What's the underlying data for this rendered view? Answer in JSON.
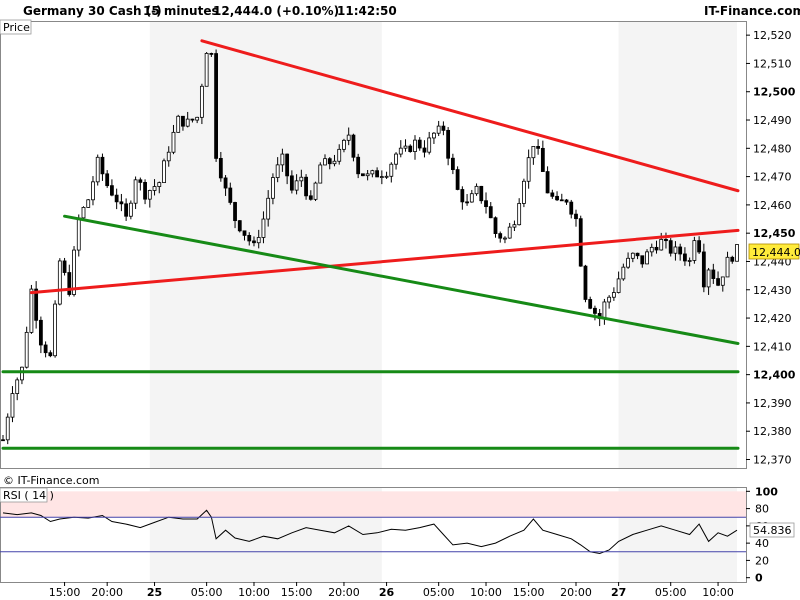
{
  "header": {
    "instrument": "Germany 30 Cash (-)",
    "timeframe": "15 minutes",
    "quote": "12,444.0 (+0.10%)",
    "time": "11:42:50",
    "brand": "IT-Finance.com"
  },
  "colors": {
    "candle": "#000000",
    "resistance": "#ee1c1c",
    "support": "#168a16",
    "rsi_line": "#000000",
    "rsi_band": "#ffe5e5",
    "rsi_level": "#4444aa",
    "session_shade": "#f4f4f4"
  },
  "chart_data": [
    {
      "type": "line",
      "panel": "price",
      "title": "Price",
      "watermark": "© IT-Finance.com",
      "current_price_label": "12,444.0",
      "current_price": 12444,
      "ylim": [
        12367,
        12525
      ],
      "y_ticks": [
        "12,520",
        "12,510",
        "12,500",
        "12,490",
        "12,480",
        "12,470",
        "12,460",
        "12,450",
        "12,440",
        "12,430",
        "12,420",
        "12,410",
        "12,400",
        "12,390",
        "12,380",
        "12,370"
      ],
      "y_tick_values": [
        12520,
        12510,
        12500,
        12490,
        12480,
        12470,
        12460,
        12450,
        12440,
        12430,
        12420,
        12410,
        12400,
        12390,
        12380,
        12370
      ],
      "bold_ticks": [
        "12,500",
        "12,450",
        "12,400"
      ],
      "x_ticks": [
        "15:00",
        "20:00",
        "25",
        "05:00",
        "10:00",
        "15:00",
        "20:00",
        "26",
        "05:00",
        "10:00",
        "15:00",
        "20:00",
        "27",
        "05:00",
        "10:00"
      ],
      "bold_x_ticks": [
        "25",
        "26",
        "27"
      ],
      "x_tick_bars": [
        13,
        22,
        32,
        43,
        53,
        62,
        72,
        81,
        92,
        102,
        111,
        121,
        130,
        141,
        151
      ],
      "shaded_bar_ranges": [
        [
          31,
          80
        ],
        [
          130,
          155
        ]
      ],
      "bar_count": 156,
      "price_points": [
        {
          "bar": 0,
          "value": 12377
        },
        {
          "bar": 2,
          "value": 12395
        },
        {
          "bar": 4,
          "value": 12402
        },
        {
          "bar": 6,
          "value": 12430
        },
        {
          "bar": 8,
          "value": 12412
        },
        {
          "bar": 10,
          "value": 12406
        },
        {
          "bar": 12,
          "value": 12440
        },
        {
          "bar": 14,
          "value": 12430
        },
        {
          "bar": 16,
          "value": 12455
        },
        {
          "bar": 18,
          "value": 12462
        },
        {
          "bar": 20,
          "value": 12475
        },
        {
          "bar": 22,
          "value": 12467
        },
        {
          "bar": 24,
          "value": 12462
        },
        {
          "bar": 26,
          "value": 12455
        },
        {
          "bar": 28,
          "value": 12470
        },
        {
          "bar": 30,
          "value": 12464
        },
        {
          "bar": 33,
          "value": 12468
        },
        {
          "bar": 35,
          "value": 12480
        },
        {
          "bar": 37,
          "value": 12490
        },
        {
          "bar": 39,
          "value": 12489
        },
        {
          "bar": 41,
          "value": 12491
        },
        {
          "bar": 43,
          "value": 12515
        },
        {
          "bar": 44,
          "value": 12513
        },
        {
          "bar": 45,
          "value": 12478
        },
        {
          "bar": 47,
          "value": 12465
        },
        {
          "bar": 49,
          "value": 12455
        },
        {
          "bar": 51,
          "value": 12450
        },
        {
          "bar": 53,
          "value": 12445
        },
        {
          "bar": 55,
          "value": 12455
        },
        {
          "bar": 57,
          "value": 12470
        },
        {
          "bar": 59,
          "value": 12476
        },
        {
          "bar": 61,
          "value": 12465
        },
        {
          "bar": 63,
          "value": 12470
        },
        {
          "bar": 65,
          "value": 12460
        },
        {
          "bar": 67,
          "value": 12474
        },
        {
          "bar": 69,
          "value": 12475
        },
        {
          "bar": 71,
          "value": 12478
        },
        {
          "bar": 73,
          "value": 12485
        },
        {
          "bar": 75,
          "value": 12472
        },
        {
          "bar": 77,
          "value": 12470
        },
        {
          "bar": 79,
          "value": 12471
        },
        {
          "bar": 81,
          "value": 12472
        },
        {
          "bar": 83,
          "value": 12478
        },
        {
          "bar": 85,
          "value": 12479
        },
        {
          "bar": 87,
          "value": 12482
        },
        {
          "bar": 89,
          "value": 12480
        },
        {
          "bar": 91,
          "value": 12485
        },
        {
          "bar": 93,
          "value": 12487
        },
        {
          "bar": 94,
          "value": 12478
        },
        {
          "bar": 96,
          "value": 12465
        },
        {
          "bar": 98,
          "value": 12460
        },
        {
          "bar": 100,
          "value": 12465
        },
        {
          "bar": 102,
          "value": 12460
        },
        {
          "bar": 104,
          "value": 12450
        },
        {
          "bar": 106,
          "value": 12448
        },
        {
          "bar": 108,
          "value": 12455
        },
        {
          "bar": 110,
          "value": 12470
        },
        {
          "bar": 112,
          "value": 12482
        },
        {
          "bar": 113,
          "value": 12478
        },
        {
          "bar": 115,
          "value": 12465
        },
        {
          "bar": 117,
          "value": 12460
        },
        {
          "bar": 119,
          "value": 12462
        },
        {
          "bar": 121,
          "value": 12455
        },
        {
          "bar": 122,
          "value": 12440
        },
        {
          "bar": 123,
          "value": 12428
        },
        {
          "bar": 125,
          "value": 12422
        },
        {
          "bar": 126,
          "value": 12420
        },
        {
          "bar": 127,
          "value": 12425
        },
        {
          "bar": 129,
          "value": 12430
        },
        {
          "bar": 131,
          "value": 12438
        },
        {
          "bar": 133,
          "value": 12442
        },
        {
          "bar": 135,
          "value": 12440
        },
        {
          "bar": 137,
          "value": 12445
        },
        {
          "bar": 139,
          "value": 12447
        },
        {
          "bar": 141,
          "value": 12444
        },
        {
          "bar": 143,
          "value": 12443
        },
        {
          "bar": 145,
          "value": 12440
        },
        {
          "bar": 146,
          "value": 12449
        },
        {
          "bar": 147,
          "value": 12445
        },
        {
          "bar": 148,
          "value": 12433
        },
        {
          "bar": 149,
          "value": 12438
        },
        {
          "bar": 151,
          "value": 12432
        },
        {
          "bar": 153,
          "value": 12440
        },
        {
          "bar": 155,
          "value": 12444
        }
      ],
      "trendlines": [
        {
          "color": "resistance",
          "from": {
            "bar": 42,
            "value": 12518
          },
          "to": {
            "bar": 156,
            "value": 12465
          }
        },
        {
          "color": "resistance",
          "from": {
            "bar": 6,
            "value": 12429
          },
          "to": {
            "bar": 156,
            "value": 12451
          }
        },
        {
          "color": "support",
          "from": {
            "bar": 13,
            "value": 12456
          },
          "to": {
            "bar": 156,
            "value": 12411
          }
        },
        {
          "color": "support",
          "from": {
            "bar": 0,
            "value": 12401
          },
          "to": {
            "bar": 156,
            "value": 12401
          }
        },
        {
          "color": "support",
          "from": {
            "bar": 0,
            "value": 12374
          },
          "to": {
            "bar": 156,
            "value": 12374
          }
        }
      ]
    },
    {
      "type": "line",
      "panel": "rsi",
      "title": "RSI ( 14 )",
      "current_value_label": "54.836",
      "ylim": [
        -5,
        105
      ],
      "y_ticks": [
        "100",
        "80",
        "60",
        "40",
        "20",
        "0"
      ],
      "y_tick_values": [
        100,
        80,
        60,
        40,
        20,
        0
      ],
      "bold_ticks": [
        "100",
        "0"
      ],
      "levels": [
        70,
        30
      ],
      "rsi_points": [
        {
          "bar": 0,
          "value": 75
        },
        {
          "bar": 3,
          "value": 73
        },
        {
          "bar": 6,
          "value": 75
        },
        {
          "bar": 8,
          "value": 72
        },
        {
          "bar": 10,
          "value": 65
        },
        {
          "bar": 12,
          "value": 68
        },
        {
          "bar": 15,
          "value": 70
        },
        {
          "bar": 18,
          "value": 69
        },
        {
          "bar": 21,
          "value": 72
        },
        {
          "bar": 23,
          "value": 65
        },
        {
          "bar": 26,
          "value": 62
        },
        {
          "bar": 29,
          "value": 58
        },
        {
          "bar": 32,
          "value": 64
        },
        {
          "bar": 35,
          "value": 70
        },
        {
          "bar": 38,
          "value": 68
        },
        {
          "bar": 41,
          "value": 68
        },
        {
          "bar": 43,
          "value": 78
        },
        {
          "bar": 44,
          "value": 70
        },
        {
          "bar": 45,
          "value": 45
        },
        {
          "bar": 47,
          "value": 55
        },
        {
          "bar": 49,
          "value": 46
        },
        {
          "bar": 52,
          "value": 42
        },
        {
          "bar": 55,
          "value": 48
        },
        {
          "bar": 58,
          "value": 45
        },
        {
          "bar": 61,
          "value": 52
        },
        {
          "bar": 64,
          "value": 58
        },
        {
          "bar": 67,
          "value": 55
        },
        {
          "bar": 70,
          "value": 52
        },
        {
          "bar": 73,
          "value": 60
        },
        {
          "bar": 76,
          "value": 50
        },
        {
          "bar": 79,
          "value": 52
        },
        {
          "bar": 82,
          "value": 56
        },
        {
          "bar": 85,
          "value": 55
        },
        {
          "bar": 88,
          "value": 58
        },
        {
          "bar": 91,
          "value": 62
        },
        {
          "bar": 93,
          "value": 50
        },
        {
          "bar": 95,
          "value": 38
        },
        {
          "bar": 98,
          "value": 40
        },
        {
          "bar": 101,
          "value": 36
        },
        {
          "bar": 104,
          "value": 40
        },
        {
          "bar": 107,
          "value": 48
        },
        {
          "bar": 110,
          "value": 55
        },
        {
          "bar": 112,
          "value": 68
        },
        {
          "bar": 114,
          "value": 55
        },
        {
          "bar": 117,
          "value": 50
        },
        {
          "bar": 120,
          "value": 45
        },
        {
          "bar": 122,
          "value": 38
        },
        {
          "bar": 124,
          "value": 30
        },
        {
          "bar": 126,
          "value": 28
        },
        {
          "bar": 128,
          "value": 32
        },
        {
          "bar": 130,
          "value": 42
        },
        {
          "bar": 133,
          "value": 50
        },
        {
          "bar": 136,
          "value": 55
        },
        {
          "bar": 139,
          "value": 60
        },
        {
          "bar": 142,
          "value": 55
        },
        {
          "bar": 145,
          "value": 50
        },
        {
          "bar": 147,
          "value": 62
        },
        {
          "bar": 149,
          "value": 42
        },
        {
          "bar": 151,
          "value": 52
        },
        {
          "bar": 153,
          "value": 48
        },
        {
          "bar": 155,
          "value": 55
        }
      ]
    }
  ]
}
